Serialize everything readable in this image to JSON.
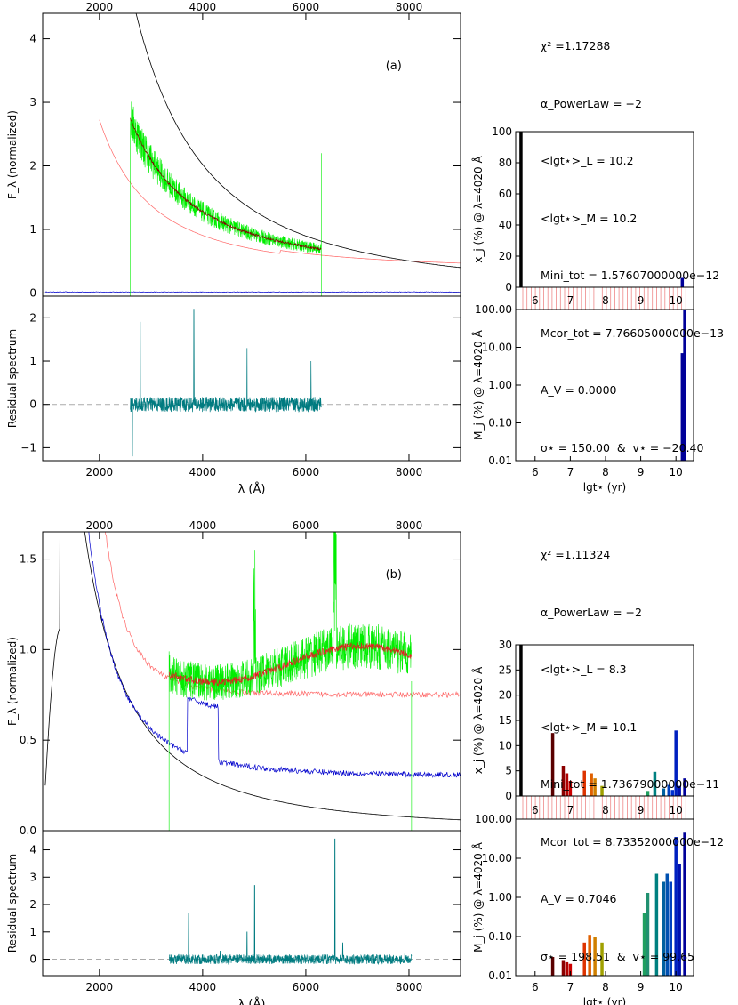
{
  "panels": [
    {
      "label": "(a)",
      "stats": [
        "χ² =1.17288",
        "α_PowerLaw = −2",
        "<lgt⋆>_L = 10.2",
        "<lgt⋆>_M = 10.2",
        "Mini_tot = 1.57607000000e−12",
        "Mcor_tot = 7.76605000000e−13",
        "A_V = 0.0000",
        "σ⋆ = 150.00  &  v⋆ = −20.40"
      ],
      "spectrum": {
        "ylabel": "F_λ (normalized)",
        "yticks": [
          "0",
          "1",
          "2",
          "3",
          "4"
        ],
        "ylim": [
          -0.05,
          4.4
        ],
        "xlim": [
          900,
          9000
        ],
        "xticks_top": [
          "2000",
          "4000",
          "6000",
          "8000"
        ],
        "observed_range": [
          2600,
          6300
        ],
        "powerlaw_norm": 2.0,
        "model_tail": 0.35,
        "powerlaw_color": "#000000",
        "observed_color": "#00ee00",
        "model_color": "#800000",
        "extinct_color": "#ff6666",
        "young_color": "#0000cc"
      },
      "residual": {
        "ylabel": "Residual spectrum",
        "yticks": [
          "−1",
          "0",
          "1",
          "2"
        ],
        "ylim": [
          -1.3,
          2.5
        ],
        "xlabel": "λ (Å)",
        "xticks": [
          "2000",
          "4000",
          "6000",
          "8000"
        ],
        "color": "#007b80",
        "spikes": [
          [
            2790,
            1.9
          ],
          [
            3830,
            2.2
          ],
          [
            4860,
            1.3
          ],
          [
            6100,
            1.0
          ],
          [
            2640,
            -1.2
          ]
        ]
      },
      "chart_data": {
        "type": "bar",
        "x_label": "lgt⋆ (yr)",
        "x_ticks": [
          "6",
          "7",
          "8",
          "9",
          "10"
        ],
        "top": {
          "ylabel": "x_j (%) @ λ=4020 Å",
          "yticks": [
            "0",
            "20",
            "40",
            "60",
            "80",
            "100"
          ],
          "ylim": [
            0,
            100
          ],
          "bars": [
            {
              "lgt": 5.6,
              "value": 100.0,
              "color": "#000000"
            },
            {
              "lgt": 10.18,
              "value": 6.0,
              "color": "#000099"
            }
          ]
        },
        "bottom": {
          "ylabel": "M_j (%) @ λ=4020 Å",
          "yticks": [
            "0.01",
            "0.10",
            "1.00",
            "10.00",
            "100.00"
          ],
          "ylim": [
            0.01,
            100
          ],
          "bars": [
            {
              "lgt": 10.18,
              "value": 7.0,
              "color": "#000099"
            },
            {
              "lgt": 10.25,
              "value": 95.0,
              "color": "#000099"
            }
          ]
        }
      }
    },
    {
      "label": "(b)",
      "stats": [
        "χ² =1.11324",
        "α_PowerLaw = −2",
        "<lgt⋆>_L = 8.3",
        "<lgt⋆>_M = 10.1",
        "Mini_tot = 1.73679000000e−11",
        "Mcor_tot = 8.73352000000e−12",
        "A_V = 0.7046",
        "σ⋆ = 198.51  &  v⋆ = 99.65"
      ],
      "spectrum": {
        "ylabel": "F_λ (normalized)",
        "yticks": [
          "0.0",
          "0.5",
          "1.0",
          "1.5"
        ],
        "ylim": [
          0,
          1.65
        ],
        "xlim": [
          900,
          9000
        ],
        "xticks_top": [
          "2000",
          "4000",
          "6000",
          "8000"
        ],
        "observed_range": [
          3350,
          8050
        ],
        "powerlaw_norm": 0.3,
        "model_tail": 0.75,
        "powerlaw_color": "#000000",
        "observed_color": "#00ee00",
        "model_color": "#e02020",
        "extinct_color": "#ff6666",
        "young_color": "#0000cc"
      },
      "residual": {
        "ylabel": "Residual spectrum",
        "yticks": [
          "0",
          "1",
          "2",
          "3",
          "4"
        ],
        "ylim": [
          -0.6,
          4.7
        ],
        "xlabel": "λ (Å)",
        "xticks": [
          "2000",
          "4000",
          "6000",
          "8000"
        ],
        "color": "#007b80",
        "spikes": [
          [
            3727,
            1.7
          ],
          [
            4861,
            1.0
          ],
          [
            5007,
            2.7
          ],
          [
            6563,
            4.4
          ],
          [
            6716,
            0.6
          ],
          [
            4340,
            0.3
          ]
        ]
      },
      "chart_data": {
        "type": "bar",
        "x_label": "lgt⋆ (yr)",
        "x_ticks": [
          "6",
          "7",
          "8",
          "9",
          "10"
        ],
        "top": {
          "ylabel": "x_j (%) @ λ=4020 Å",
          "yticks": [
            "0",
            "5",
            "10",
            "15",
            "20",
            "25",
            "30"
          ],
          "ylim": [
            0,
            30
          ],
          "bars": [
            {
              "lgt": 5.6,
              "value": 30.0,
              "color": "#000000"
            },
            {
              "lgt": 6.5,
              "value": 12.5,
              "color": "#5a0000"
            },
            {
              "lgt": 6.8,
              "value": 6.0,
              "color": "#8b0000"
            },
            {
              "lgt": 6.9,
              "value": 4.5,
              "color": "#b00000"
            },
            {
              "lgt": 7.0,
              "value": 3.0,
              "color": "#cc0000"
            },
            {
              "lgt": 7.4,
              "value": 5.0,
              "color": "#dd3300"
            },
            {
              "lgt": 7.6,
              "value": 4.5,
              "color": "#e06000"
            },
            {
              "lgt": 7.7,
              "value": 3.5,
              "color": "#d08000"
            },
            {
              "lgt": 7.9,
              "value": 2.0,
              "color": "#a0a000"
            },
            {
              "lgt": 9.2,
              "value": 1.0,
              "color": "#20a060"
            },
            {
              "lgt": 9.4,
              "value": 4.8,
              "color": "#008080"
            },
            {
              "lgt": 9.65,
              "value": 1.5,
              "color": "#0060a0"
            },
            {
              "lgt": 9.8,
              "value": 2.2,
              "color": "#0040c0"
            },
            {
              "lgt": 9.9,
              "value": 1.2,
              "color": "#0030d0"
            },
            {
              "lgt": 10.0,
              "value": 13.0,
              "color": "#0020c0"
            },
            {
              "lgt": 10.1,
              "value": 2.0,
              "color": "#0010b0"
            },
            {
              "lgt": 10.25,
              "value": 3.5,
              "color": "#000099"
            }
          ]
        },
        "bottom": {
          "ylabel": "M_j (%) @ λ=4020 Å",
          "yticks": [
            "0.01",
            "0.10",
            "1.00",
            "10.00",
            "100.00"
          ],
          "ylim": [
            0.01,
            100
          ],
          "bars": [
            {
              "lgt": 6.5,
              "value": 0.03,
              "color": "#5a0000"
            },
            {
              "lgt": 6.8,
              "value": 0.025,
              "color": "#8b0000"
            },
            {
              "lgt": 6.9,
              "value": 0.022,
              "color": "#b00000"
            },
            {
              "lgt": 7.0,
              "value": 0.02,
              "color": "#cc0000"
            },
            {
              "lgt": 7.4,
              "value": 0.07,
              "color": "#dd3300"
            },
            {
              "lgt": 7.55,
              "value": 0.11,
              "color": "#e06000"
            },
            {
              "lgt": 7.7,
              "value": 0.1,
              "color": "#d08000"
            },
            {
              "lgt": 7.9,
              "value": 0.07,
              "color": "#a0a000"
            },
            {
              "lgt": 9.1,
              "value": 0.4,
              "color": "#20a060"
            },
            {
              "lgt": 9.2,
              "value": 1.3,
              "color": "#209070"
            },
            {
              "lgt": 9.45,
              "value": 4.0,
              "color": "#008080"
            },
            {
              "lgt": 9.65,
              "value": 2.5,
              "color": "#0060a0"
            },
            {
              "lgt": 9.75,
              "value": 4.0,
              "color": "#0050b0"
            },
            {
              "lgt": 9.85,
              "value": 2.5,
              "color": "#0040c0"
            },
            {
              "lgt": 10.0,
              "value": 35.0,
              "color": "#0020c0"
            },
            {
              "lgt": 10.1,
              "value": 7.0,
              "color": "#0010b0"
            },
            {
              "lgt": 10.25,
              "value": 45.0,
              "color": "#000099"
            }
          ]
        }
      }
    }
  ]
}
